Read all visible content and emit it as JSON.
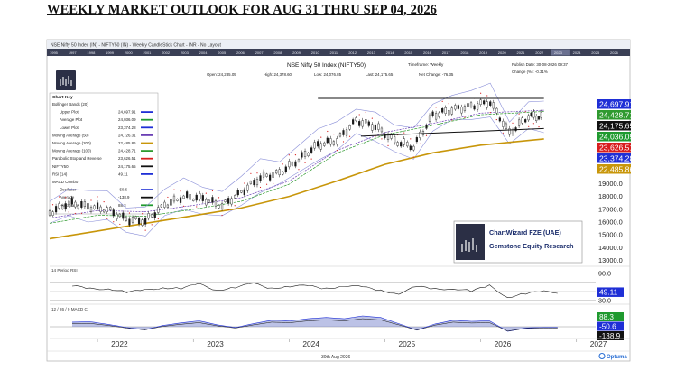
{
  "page": {
    "heading": "WEEKLY MARKET OUTLOOK FOR AUG 31 THRU SEP 04, 2026"
  },
  "window": {
    "title": "NSE Nifty 50 Index (IN) - NIFTY50 (IN) - Weekly CandleStick Chart - INR - No Layout",
    "timeline_years": [
      "1995",
      "1997",
      "1998",
      "1999",
      "2000",
      "2001",
      "2002",
      "2003",
      "2004",
      "2005",
      "2006",
      "2007",
      "2008",
      "2009",
      "2010",
      "2011",
      "2012",
      "2013",
      "2014",
      "2015",
      "2016",
      "2017",
      "2018",
      "2019",
      "2020",
      "2021",
      "2022",
      "2023",
      "2024",
      "2025",
      "2026"
    ],
    "timeline_selected": "2023"
  },
  "header": {
    "instrument": "NSE Nifty 50 Index (NIFTY50)",
    "timeframe": "Timeframe: Weekly",
    "publish_date": "Publish Date: 30-08-2026 09:37",
    "change_pct": "Change (%): -0.31%",
    "open": "Open: 24,285.05",
    "high": "High: 24,378.60",
    "low": "Low: 24,076.85",
    "last": "Last: 24,175.65",
    "net_change": "Net Change: -76.35"
  },
  "chart_key": {
    "title": "Chart Key",
    "items": [
      {
        "label": "Bollinger Bands (20)",
        "value": "",
        "color": ""
      },
      {
        "label": "Upper Plot",
        "value": "24,697.91",
        "color": "#1f2fd6",
        "indent": true
      },
      {
        "label": "Average Plot",
        "value": "24,036.09",
        "color": "#1f9a2f",
        "indent": true
      },
      {
        "label": "Lower Plot",
        "value": "23,374.28",
        "color": "#1f2fd6",
        "indent": true
      },
      {
        "label": "Moving Average (50)",
        "value": "24,726.31",
        "color": "#6b3fb4"
      },
      {
        "label": "Moving Average (200)",
        "value": "22,485.86",
        "color": "#c8960a"
      },
      {
        "label": "Moving Average (100)",
        "value": "24,428.71",
        "color": "#2f9a2f"
      },
      {
        "label": "Parabolic Stop and Reverse",
        "value": "23,626.51",
        "color": "#d81e1e"
      },
      {
        "label": "NIFTY50",
        "value": "24,175.65",
        "color": "#111111"
      },
      {
        "label": "RSI (14)",
        "value": "49.11",
        "color": "#1f2fd6"
      },
      {
        "label": "MACD Combo",
        "value": "",
        "color": ""
      },
      {
        "label": "Oscillator",
        "value": "-50.6",
        "color": "#1f2fd6",
        "indent": true
      },
      {
        "label": "Average",
        "value": "-138.9",
        "color": "#111111",
        "indent": true
      },
      {
        "label": "Histogram",
        "value": "88.3",
        "color": "#1f9a2f",
        "indent": true
      }
    ]
  },
  "watermark": {
    "line1": "ChartWizard FZE (UAE)",
    "line2": "Gemstone Equity Research"
  },
  "rsi_panel": {
    "label": "14 Period RSI"
  },
  "macd_panel": {
    "label": "12 / 26 / 9 MACD C"
  },
  "footer": {
    "date": "30th Aug 2026",
    "brand": "Optuma"
  },
  "colors": {
    "price": "#1a1a1a",
    "ma200": "#c8960a",
    "ma50": "#6b3fb4",
    "ma100": "#2f9a2f",
    "bb": "#8a8fd8",
    "sar": "#d81e1e",
    "rsi": "#1a1a1a",
    "macd_fill_pos": "#6b78c8",
    "macd_fill_neg": "#2f9a2f"
  },
  "chart_data": {
    "type": "line",
    "title": "NSE Nifty 50 Index (NIFTY50)",
    "x_ticks": [
      "2022",
      "2023",
      "2024",
      "2025",
      "2026",
      "2027"
    ],
    "y_ticks": [
      "20000.0",
      "19000.0",
      "18000.0",
      "17000.0",
      "16000.0",
      "15000.0",
      "14000.0",
      "13000.0"
    ],
    "ylim": [
      12900,
      26000
    ],
    "last_value_tags": [
      {
        "text": "24,697.91",
        "value": 24697.91,
        "bg": "#1f2fd6"
      },
      {
        "text": "24,428.71",
        "value": 24428.71,
        "bg": "#2f9a2f"
      },
      {
        "text": "24,175.65",
        "value": 24175.65,
        "bg": "#111111"
      },
      {
        "text": "24,036.09",
        "value": 24036.09,
        "bg": "#1f9a2f"
      },
      {
        "text": "23,626.51",
        "value": 23626.51,
        "bg": "#d81e1e"
      },
      {
        "text": "23,374.28",
        "value": 23374.28,
        "bg": "#1f2fd6"
      },
      {
        "text": "22,485.86",
        "value": 22485.86,
        "bg": "#c8960a"
      }
    ],
    "series": [
      {
        "name": "NIFTY50",
        "x": [
          2021.5,
          2021.7,
          2021.9,
          2022.1,
          2022.3,
          2022.5,
          2022.7,
          2022.9,
          2023.1,
          2023.3,
          2023.5,
          2023.7,
          2023.9,
          2024.1,
          2024.3,
          2024.5,
          2024.7,
          2024.9,
          2025.1,
          2025.3,
          2025.5,
          2025.7,
          2025.9,
          2026.1,
          2026.3,
          2026.5,
          2026.66
        ],
        "values": [
          16700,
          17500,
          17200,
          17000,
          16200,
          16100,
          17300,
          18000,
          17800,
          17300,
          18300,
          19500,
          19800,
          20900,
          22000,
          22400,
          23900,
          23500,
          22300,
          21900,
          24300,
          24800,
          25000,
          25400,
          22900,
          24300,
          24175
        ]
      },
      {
        "name": "Moving Average (200)",
        "x": [
          2021.5,
          2022.0,
          2022.5,
          2023.0,
          2023.5,
          2024.0,
          2024.5,
          2025.0,
          2025.5,
          2026.0,
          2026.66
        ],
        "values": [
          14700,
          15300,
          15900,
          16500,
          17100,
          18000,
          19200,
          20500,
          21400,
          22000,
          22486
        ]
      },
      {
        "name": "Moving Average (50)",
        "x": [
          2021.5,
          2022.0,
          2022.5,
          2023.0,
          2023.5,
          2024.0,
          2024.5,
          2025.0,
          2025.5,
          2026.0,
          2026.66
        ],
        "values": [
          16300,
          16900,
          16800,
          17300,
          17900,
          19200,
          21600,
          23000,
          23700,
          24500,
          24726
        ]
      }
    ],
    "channel": {
      "upper": 25650,
      "lower_start": 22700,
      "lower_end": 23300
    },
    "rsi": {
      "ylim": [
        30,
        90
      ],
      "ticks": [
        "90.0",
        "50.0",
        "30.0"
      ],
      "last": "49.11",
      "values": [
        62,
        55,
        58,
        48,
        52,
        60,
        57,
        65,
        54,
        60,
        66,
        58,
        63,
        61,
        57,
        64,
        59,
        52,
        47,
        60,
        55,
        58,
        50,
        62,
        39,
        45,
        49
      ]
    },
    "macd": {
      "ticks": [
        "88.3",
        "-50.6",
        "-138.9"
      ],
      "values": [
        300,
        320,
        150,
        -50,
        -200,
        80,
        250,
        380,
        120,
        -50,
        200,
        420,
        380,
        520,
        600,
        520,
        700,
        600,
        200,
        -220,
        180,
        420,
        350,
        380,
        -300,
        -80,
        -50
      ]
    }
  }
}
